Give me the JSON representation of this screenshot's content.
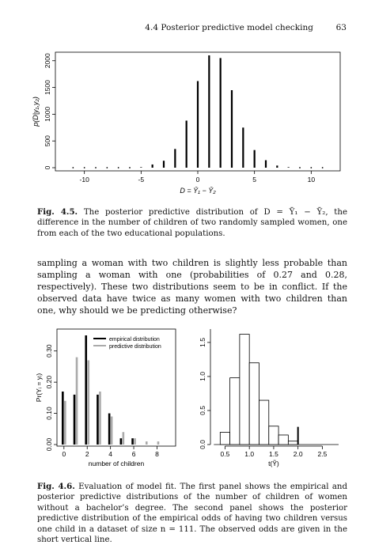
{
  "header": {
    "section": "4.4 Posterior predictive model checking",
    "page_number": "63"
  },
  "figure_4_5": {
    "caption_label": "Fig. 4.5.",
    "caption_text": "The posterior predictive distribution of D = Ȳ₁ − Ȳ₂, the difference in the number of children of two randomly sampled women, one from each of the two educational populations."
  },
  "body": {
    "paragraph": "sampling a woman with two children is slightly less probable than sampling a woman with one (probabilities of 0.27 and 0.28, respectively). These two distributions seem to be in conflict. If the observed data have twice as many women with two children than one, why should we be predicting otherwise?"
  },
  "figure_4_6": {
    "caption_label": "Fig. 4.6.",
    "caption_text": "Evaluation of model fit. The first panel shows the empirical and posterior predictive distributions of the number of children of women without a bachelor’s degree. The second panel shows the posterior predictive distribution of the empirical odds of having two children versus one child in a dataset of size n = 111. The observed odds are given in the short vertical line."
  },
  "chart_data": [
    {
      "type": "bar",
      "ylabel": "p(D|y₁,y₂)",
      "xlabel": "D = Ȳ₁ − Ȳ₂",
      "xlim": [
        -12,
        12
      ],
      "ylim": [
        0,
        2100
      ],
      "xticks": [
        -10,
        -5,
        0,
        5,
        10
      ],
      "yticks": [
        0,
        500,
        1000,
        1500,
        2000
      ],
      "x": [
        -11,
        -10,
        -9,
        -8,
        -7,
        -6,
        -5,
        -4,
        -3,
        -2,
        -1,
        0,
        1,
        2,
        3,
        4,
        5,
        6,
        7,
        8,
        9,
        10,
        11
      ],
      "values": [
        0,
        0,
        0,
        0,
        0,
        0,
        10,
        60,
        130,
        350,
        880,
        1620,
        2100,
        2050,
        1450,
        750,
        330,
        140,
        40,
        10,
        0,
        0,
        0
      ]
    },
    {
      "type": "bar",
      "ylabel": "Pr(Yᵢ = yᵢ)",
      "xlabel": "number of children",
      "xlim": [
        -0.6,
        9.6
      ],
      "ylim": [
        0,
        0.35
      ],
      "xticks": [
        0,
        2,
        4,
        6,
        8
      ],
      "yticks": [
        0.0,
        0.1,
        0.2,
        0.3
      ],
      "ytick_labels": [
        "0.00",
        "0.10",
        "0.20",
        "0.30"
      ],
      "legend": {
        "position": "top-right",
        "entries": [
          "empirical distribution",
          "predictive distribution"
        ]
      },
      "x": [
        0,
        1,
        2,
        3,
        4,
        5,
        6,
        7,
        8
      ],
      "series": [
        {
          "name": "empirical distribution",
          "color": "#000000",
          "values": [
            0.17,
            0.16,
            0.35,
            0.16,
            0.1,
            0.02,
            0.02,
            0.0,
            0.0
          ]
        },
        {
          "name": "predictive distribution",
          "color": "#aaaaaa",
          "values": [
            0.14,
            0.28,
            0.27,
            0.17,
            0.09,
            0.04,
            0.02,
            0.01,
            0.01
          ]
        }
      ]
    },
    {
      "type": "histogram",
      "xlabel": "t(Ỹ)",
      "xlim": [
        0.2,
        2.9
      ],
      "ylim": [
        0,
        1.65
      ],
      "xticks": [
        0.5,
        1.0,
        1.5,
        2.0,
        2.5
      ],
      "xtick_labels": [
        "0.5",
        "1.0",
        "1.5",
        "2.0",
        "2.5"
      ],
      "yticks": [
        0.0,
        0.5,
        1.0,
        1.5
      ],
      "ytick_labels": [
        "0.0",
        "0.5",
        "1.0",
        "1.5"
      ],
      "bin_edges": [
        0.4,
        0.6,
        0.8,
        1.0,
        1.2,
        1.4,
        1.6,
        1.8,
        2.0
      ],
      "densities": [
        0.18,
        0.98,
        1.62,
        1.2,
        0.65,
        0.27,
        0.14,
        0.05
      ],
      "observed_value": 2.0,
      "observed_height": 0.26
    }
  ]
}
